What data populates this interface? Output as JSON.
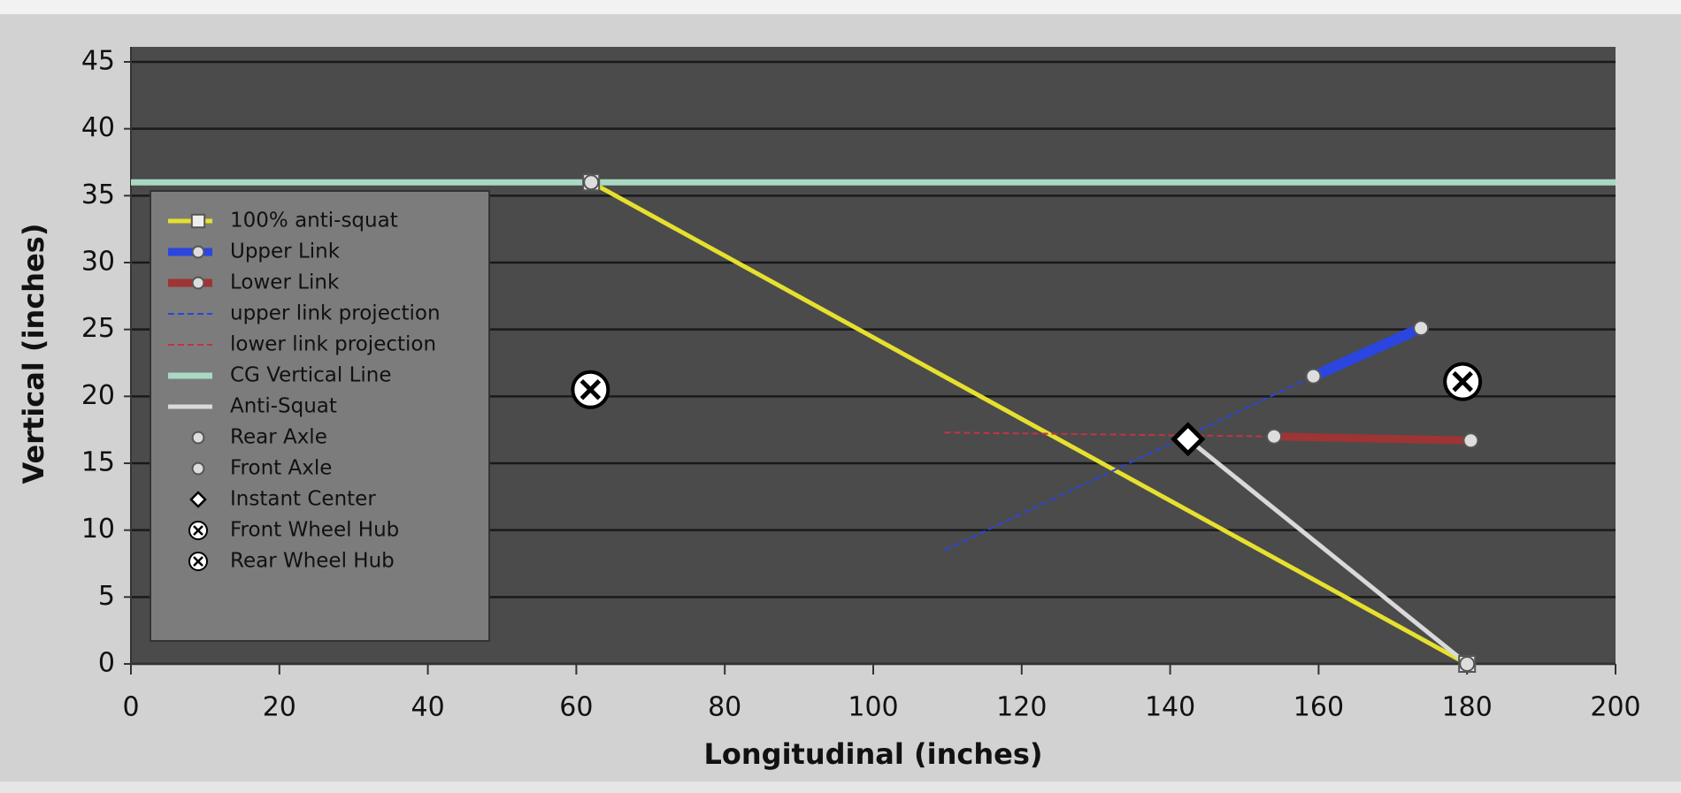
{
  "chart_data": {
    "type": "scatter",
    "x_label": "Longitudinal (inches)",
    "y_label": "Vertical (inches)",
    "xlim": [
      0,
      200
    ],
    "ylim": [
      0,
      45
    ],
    "xticks": [
      0,
      20,
      40,
      60,
      80,
      100,
      120,
      140,
      160,
      180,
      200
    ],
    "yticks": [
      0,
      5,
      10,
      15,
      20,
      25,
      30,
      35,
      40,
      45
    ],
    "grid": true,
    "legend": "left",
    "series": [
      {
        "name": "100% anti-squat",
        "color": "#e6e02e",
        "width": 5,
        "dash": false,
        "marker": "square",
        "x": [
          62,
          180
        ],
        "y": [
          36,
          0
        ]
      },
      {
        "name": "Upper Link",
        "color": "#2a45e0",
        "width": 12,
        "dash": false,
        "marker": "circle",
        "x": [
          159.3,
          173.8
        ],
        "y": [
          21.5,
          25.1
        ]
      },
      {
        "name": "Lower Link",
        "color": "#9e3434",
        "width": 9,
        "dash": false,
        "marker": "circle",
        "x": [
          154,
          180.5
        ],
        "y": [
          17,
          16.7
        ]
      },
      {
        "name": "upper link projection",
        "color": "#2a45e0",
        "width": 2,
        "dash": true,
        "marker": "none",
        "x": [
          109.6,
          159.3
        ],
        "y": [
          8.5,
          21.5
        ]
      },
      {
        "name": "lower link projection",
        "color": "#c03444",
        "width": 2,
        "dash": true,
        "marker": "none",
        "x": [
          109.6,
          154
        ],
        "y": [
          17.3,
          17
        ]
      },
      {
        "name": "CG Vertical Line",
        "color": "#a9d9c3",
        "width": 7,
        "dash": false,
        "marker": "none",
        "x": [
          0,
          200
        ],
        "y": [
          36,
          36
        ]
      },
      {
        "name": "Anti-Squat",
        "color": "#d9d9d9",
        "width": 5,
        "dash": false,
        "marker": "none",
        "x": [
          142.4,
          180
        ],
        "y": [
          16.8,
          0
        ]
      },
      {
        "name": "Rear Axle",
        "color": "#dddddd",
        "width": 0,
        "dash": false,
        "marker": "circle",
        "x": [
          180
        ],
        "y": [
          0
        ]
      },
      {
        "name": "Front Axle",
        "color": "#dddddd",
        "width": 0,
        "dash": false,
        "marker": "circle",
        "x": [
          62
        ],
        "y": [
          36
        ]
      },
      {
        "name": "Instant Center",
        "color": "#ffffff",
        "width": 0,
        "dash": false,
        "marker": "diamond",
        "x": [
          142.4
        ],
        "y": [
          16.8
        ]
      },
      {
        "name": "Front Wheel Hub",
        "color": "#ffffff",
        "width": 0,
        "dash": false,
        "marker": "xcircle",
        "x": [
          61.9
        ],
        "y": [
          20.5
        ]
      },
      {
        "name": "Rear Wheel Hub",
        "color": "#ffffff",
        "width": 0,
        "dash": false,
        "marker": "xcircle",
        "x": [
          179.4
        ],
        "y": [
          21.1
        ]
      }
    ]
  }
}
